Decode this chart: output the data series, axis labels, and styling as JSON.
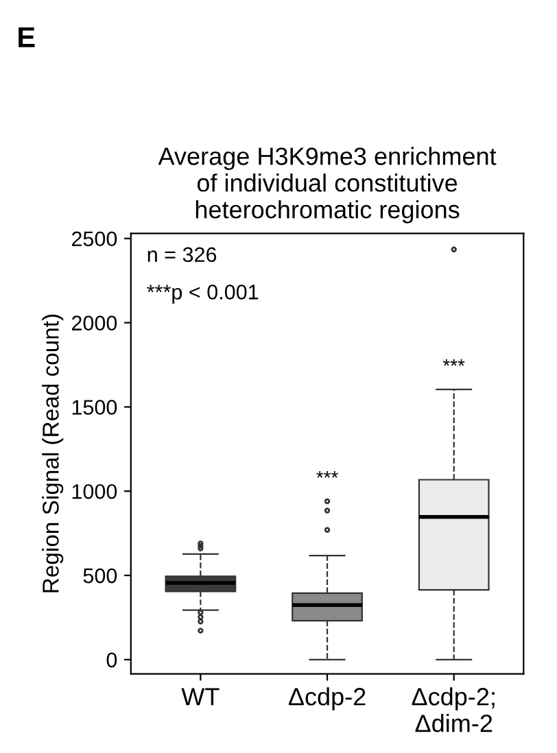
{
  "chart_data": {
    "type": "box",
    "title": "Average H3K9me3 enrichment\nof individual constitutive\nheterochromatic regions",
    "ylabel": "Region Signal (Read count)",
    "categories": [
      "WT",
      "Δcdp-2",
      "Δcdp-2;\nΔdim-2"
    ],
    "colors": [
      "#3c3c3c",
      "#8a8a8a",
      "#ececec"
    ],
    "boxes": [
      {
        "low": 294,
        "q1": 405,
        "median": 455,
        "q3": 495,
        "high": 627,
        "outliers": [
          690,
          675,
          660,
          280,
          253,
          226,
          172
        ]
      },
      {
        "low": 0,
        "q1": 231,
        "median": 324,
        "q3": 395,
        "high": 618,
        "outliers": [
          940,
          885,
          770
        ]
      },
      {
        "low": 0,
        "q1": 414,
        "median": 847,
        "q3": 1068,
        "high": 1604,
        "outliers": [
          2435
        ]
      }
    ],
    "ylim": [
      -85,
      2530
    ],
    "yticks": [
      0,
      500,
      1000,
      1500,
      2000,
      2500
    ],
    "grid": false,
    "annotations": [
      "E",
      "n = 326",
      "***p < 0.001",
      "***",
      "***"
    ]
  }
}
